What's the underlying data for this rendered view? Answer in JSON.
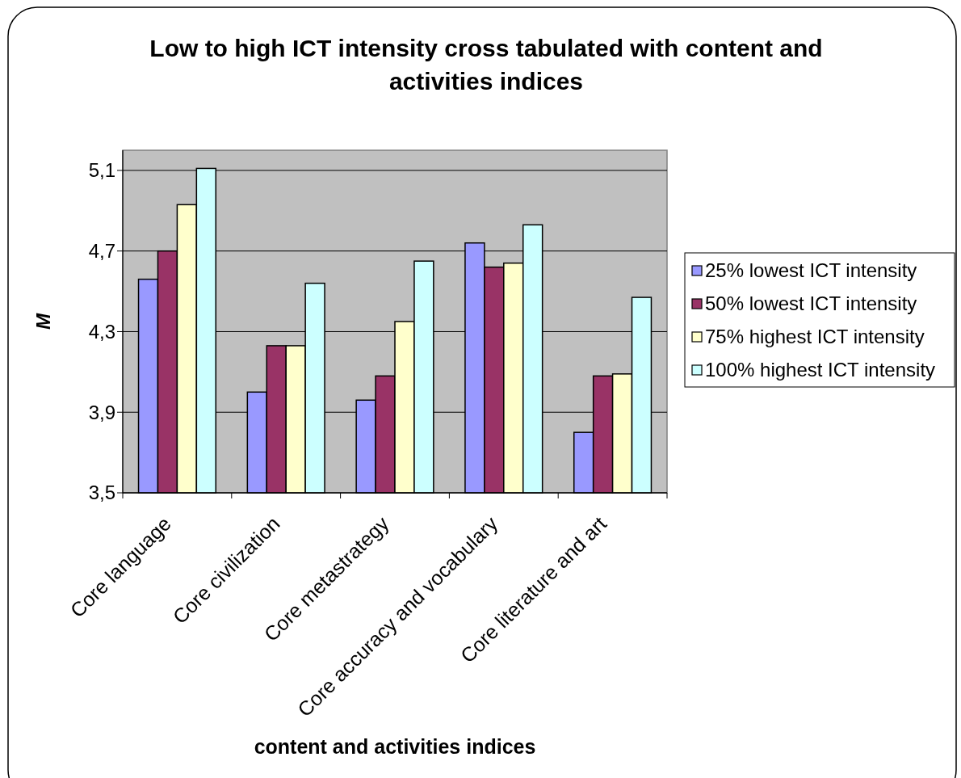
{
  "chart_data": {
    "type": "bar",
    "title": "Low to high ICT intensity cross tabulated with content and activities indices",
    "xlabel": "content and activities indices",
    "ylabel": "M",
    "categories": [
      "Core language",
      "Core civilization",
      "Core metastrategy",
      "Core accuracy and vocabulary",
      "Core literature and art"
    ],
    "series": [
      {
        "name": "25% lowest ICT intensity",
        "color": "#9999ff",
        "values": [
          4.56,
          4.0,
          3.96,
          4.74,
          3.8
        ]
      },
      {
        "name": "50% lowest ICT intensity",
        "color": "#993366",
        "values": [
          4.7,
          4.23,
          4.08,
          4.62,
          4.08
        ]
      },
      {
        "name": "75% highest ICT intensity",
        "color": "#ffffcc",
        "values": [
          4.93,
          4.23,
          4.35,
          4.64,
          4.09
        ]
      },
      {
        "name": "100% highest ICT intensity",
        "color": "#ccffff",
        "values": [
          5.11,
          4.54,
          4.65,
          4.83,
          4.47
        ]
      }
    ],
    "ylim": [
      3.5,
      5.2
    ],
    "yticks": [
      {
        "value": 3.5,
        "label": "3,5"
      },
      {
        "value": 3.9,
        "label": "3,9"
      },
      {
        "value": 4.3,
        "label": "4,3"
      },
      {
        "value": 4.7,
        "label": "4,7"
      },
      {
        "value": 5.1,
        "label": "5,1"
      }
    ],
    "grid": "y",
    "legend": "right"
  }
}
